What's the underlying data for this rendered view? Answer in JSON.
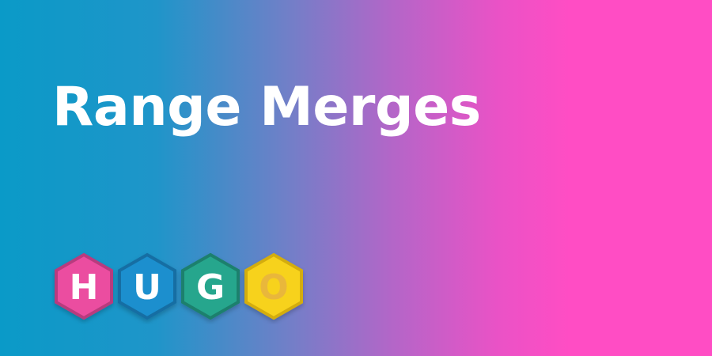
{
  "title": "Range Merges",
  "logo": {
    "letters": [
      {
        "char": "H",
        "color": "#eb4ea0",
        "border": "#b83a7e",
        "letter_color": "#ffffff"
      },
      {
        "char": "U",
        "color": "#1a8fce",
        "border": "#136ea3",
        "letter_color": "#ffffff"
      },
      {
        "char": "G",
        "color": "#27a68d",
        "border": "#1d806d",
        "letter_color": "#ffffff"
      },
      {
        "char": "O",
        "color": "#f7d21d",
        "border": "#d4ad10",
        "letter_color": "#e9b73b"
      }
    ]
  },
  "colors": {
    "gradient_start": "#0a9ac8",
    "gradient_end": "#ff4dc4",
    "title": "#ffffff"
  }
}
